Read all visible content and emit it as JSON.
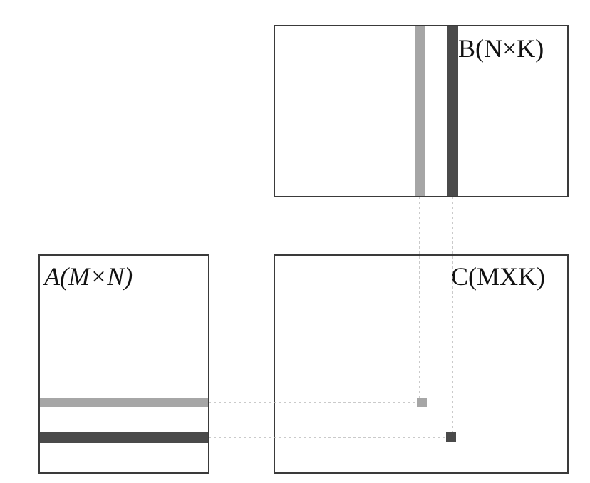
{
  "diagram": {
    "matrix_b": {
      "label": "B(N×K)"
    },
    "matrix_a": {
      "label": "A(M×N)"
    },
    "matrix_c": {
      "label": "C(MXK)"
    }
  },
  "colors": {
    "border": "#3a3a3a",
    "light_stripe": "#a6a6a6",
    "dark_stripe": "#4a4a4a",
    "guide_line": "#b8b8b8"
  }
}
